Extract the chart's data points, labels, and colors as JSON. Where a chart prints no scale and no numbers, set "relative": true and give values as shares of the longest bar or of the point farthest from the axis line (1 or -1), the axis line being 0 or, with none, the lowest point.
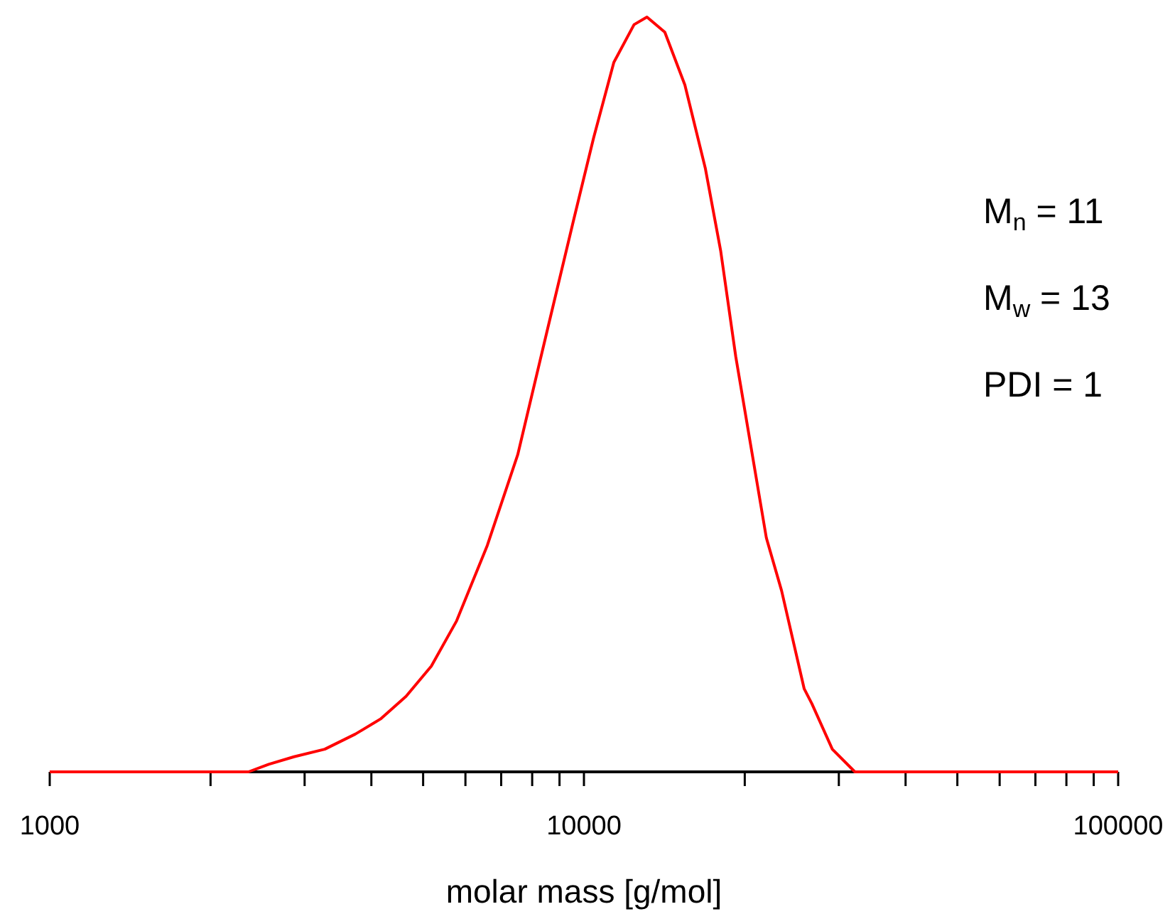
{
  "chart_data": {
    "type": "line",
    "relative": true,
    "xlabel": "molar mass [g/mol]",
    "log": "x",
    "xlim": [
      1000,
      100000
    ],
    "xticks": [
      1000,
      {
        "value": 2000,
        "label": null
      },
      {
        "value": 3000,
        "label": null
      },
      {
        "value": 4000,
        "label": null
      },
      {
        "value": 5000,
        "label": null
      },
      {
        "value": 6000,
        "label": null
      },
      {
        "value": 7000,
        "label": null
      },
      {
        "value": 8000,
        "label": null
      },
      {
        "value": 9000,
        "label": null
      },
      10000,
      {
        "value": 20000,
        "label": null
      },
      {
        "value": 30000,
        "label": null
      },
      {
        "value": 40000,
        "label": null
      },
      {
        "value": 50000,
        "label": null
      },
      {
        "value": 60000,
        "label": null
      },
      {
        "value": 70000,
        "label": null
      },
      {
        "value": 80000,
        "label": null
      },
      {
        "value": 90000,
        "label": null
      },
      100000
    ],
    "tick_labels": "x",
    "grid": false,
    "marker": "none",
    "line_style": "solid",
    "series": [
      {
        "color": "#ff0000",
        "x": [
          1000,
          2355,
          2570,
          2866,
          3272,
          3733,
          4160,
          4645,
          5180,
          5776,
          6593,
          7516,
          8570,
          9556,
          10425,
          11375,
          12410,
          13120,
          14170,
          15450,
          16870,
          18030,
          19240,
          20550,
          21950,
          23440,
          25840,
          26720,
          29170,
          32150,
          100000
        ],
        "values": [
          0,
          0,
          0.01,
          0.02,
          0.03,
          0.05,
          0.07,
          0.1,
          0.14,
          0.2,
          0.3,
          0.42,
          0.59,
          0.73,
          0.84,
          0.94,
          0.99,
          1,
          0.98,
          0.91,
          0.8,
          0.69,
          0.55,
          0.43,
          0.31,
          0.24,
          0.11,
          0.09,
          0.03,
          0,
          0
        ]
      }
    ],
    "annotations": [
      "M$_{n}$ = 11",
      "M$_{w}$ = 13",
      "PDI = 1"
    ]
  }
}
